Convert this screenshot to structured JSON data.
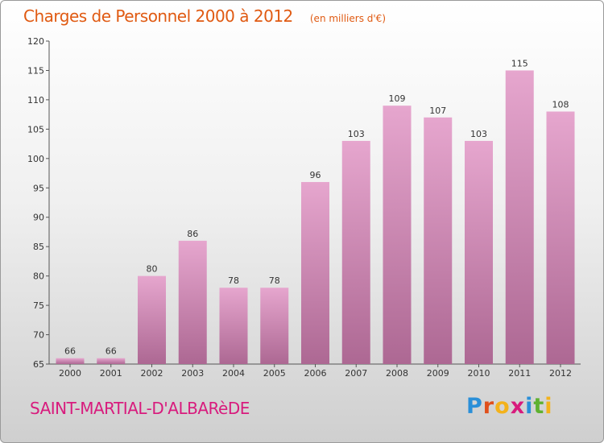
{
  "header": {
    "title": "Charges de Personnel 2000 à 2012",
    "subtitle": "(en milliers d'€)"
  },
  "footer": {
    "commune": "SAINT-MARTIAL-D'ALBARèDE",
    "brand": {
      "text": "Proxiti",
      "letters": [
        {
          "ch": "P",
          "color": "#2a8fd8"
        },
        {
          "ch": "r",
          "color": "#e0501c"
        },
        {
          "ch": "o",
          "color": "#f3b21b"
        },
        {
          "ch": "x",
          "color": "#d81b7d"
        },
        {
          "ch": "i",
          "color": "#2a8fd8"
        },
        {
          "ch": "t",
          "color": "#5fb130"
        },
        {
          "ch": "i",
          "color": "#f3b21b"
        }
      ]
    }
  },
  "colors": {
    "title": "#e05a12",
    "bar_top": "#e6a6ce",
    "bar_bottom": "#ad6893",
    "commune": "#d81b7d"
  },
  "chart_data": {
    "type": "bar",
    "title": "Charges de Personnel 2000 à 2012",
    "subtitle": "(en milliers d'€)",
    "categories": [
      "2000",
      "2001",
      "2002",
      "2003",
      "2004",
      "2005",
      "2006",
      "2007",
      "2008",
      "2009",
      "2010",
      "2011",
      "2012"
    ],
    "values": [
      66,
      66,
      80,
      86,
      78,
      78,
      96,
      103,
      109,
      107,
      103,
      115,
      108
    ],
    "ylim": [
      65,
      120
    ],
    "yticks": [
      65,
      70,
      75,
      80,
      85,
      90,
      95,
      100,
      105,
      110,
      115,
      120
    ],
    "grid": false,
    "legend": "none",
    "data_labels": true
  }
}
